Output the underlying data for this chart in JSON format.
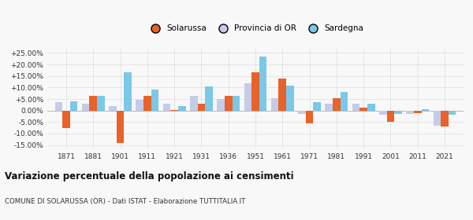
{
  "years": [
    1871,
    1881,
    1901,
    1911,
    1921,
    1931,
    1936,
    1951,
    1961,
    1971,
    1981,
    1991,
    2001,
    2011,
    2021
  ],
  "solarussa": [
    -7.5,
    6.5,
    -14.0,
    6.5,
    0.1,
    3.0,
    6.5,
    16.5,
    13.8,
    -5.5,
    5.5,
    1.2,
    -4.8,
    -1.2,
    -7.0
  ],
  "provincia": [
    3.5,
    3.0,
    2.0,
    4.5,
    2.8,
    6.5,
    5.0,
    12.0,
    5.5,
    -1.5,
    3.0,
    2.8,
    -2.0,
    -1.5,
    -6.5
  ],
  "sardegna": [
    4.0,
    6.5,
    16.5,
    9.0,
    2.0,
    10.5,
    6.5,
    23.5,
    10.8,
    3.8,
    8.0,
    3.0,
    -1.5,
    0.5,
    -2.0
  ],
  "color_solarussa": "#e8622a",
  "color_provincia": "#c5cce8",
  "color_sardegna": "#7bc8e8",
  "title": "Variazione percentuale della popolazione ai censimenti",
  "subtitle": "COMUNE DI SOLARUSSA (OR) - Dati ISTAT - Elaborazione TUTTITALIA.IT",
  "yticks": [
    -15,
    -10,
    -5,
    0,
    5,
    10,
    15,
    20,
    25
  ],
  "ylim": [
    -17,
    27
  ],
  "bar_width": 0.28,
  "background_color": "#f8f8f8",
  "grid_color": "#dddddd",
  "legend_labels": [
    "Solarussa",
    "Provincia di OR",
    "Sardegna"
  ]
}
